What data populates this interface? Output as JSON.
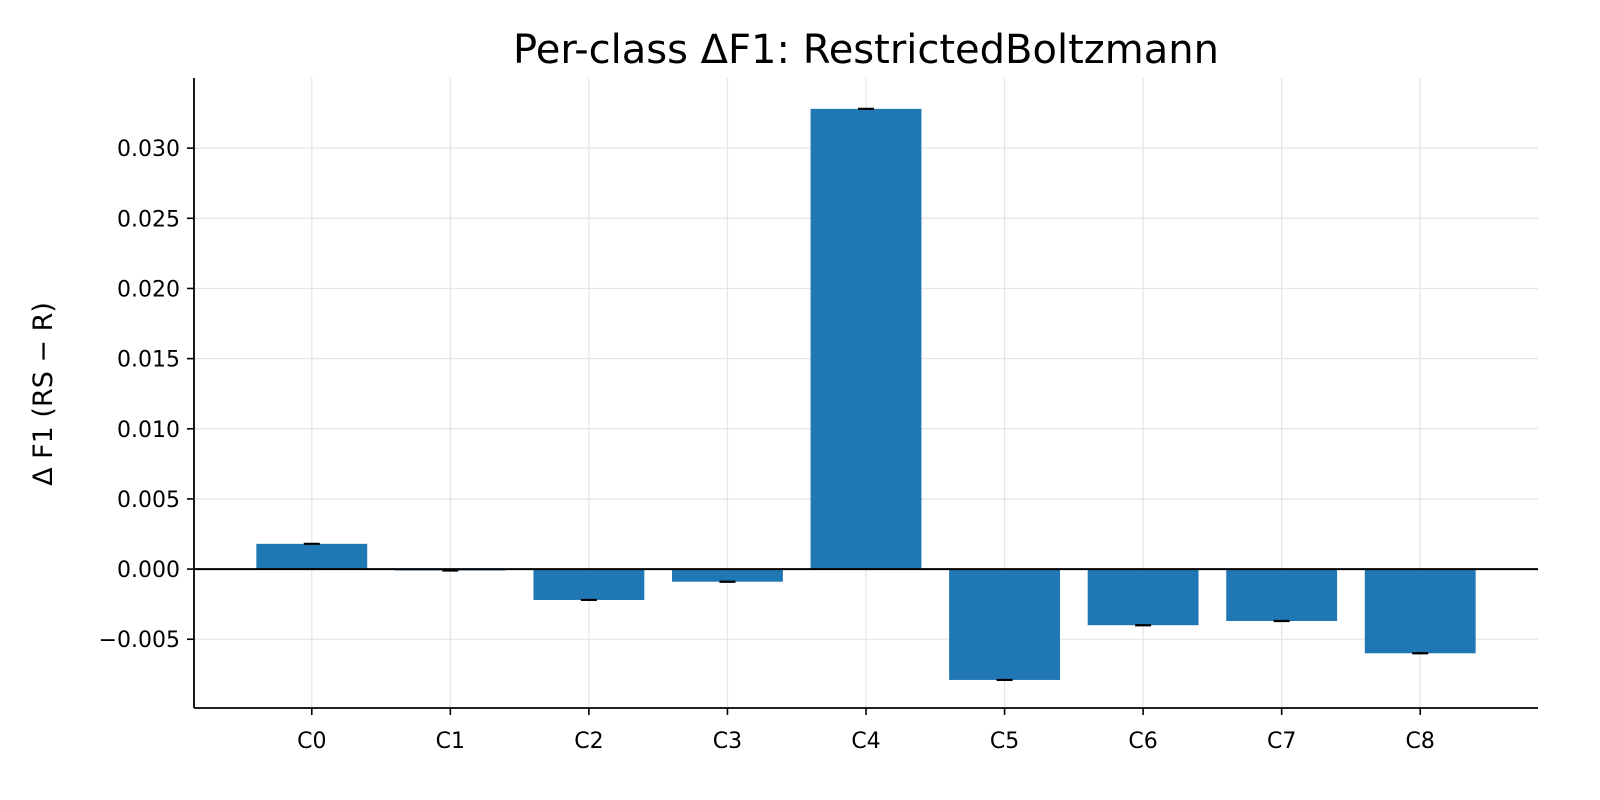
{
  "chart_data": {
    "type": "bar",
    "title": "Per-class ΔF1: RestrictedBoltzmann",
    "xlabel": "",
    "ylabel": "Δ F1 (RS − R)",
    "categories": [
      "C0",
      "C1",
      "C2",
      "C3",
      "C4",
      "C5",
      "C6",
      "C7",
      "C8"
    ],
    "values": [
      0.0018,
      -0.0001,
      -0.0022,
      -0.0009,
      0.0328,
      -0.0079,
      -0.004,
      -0.0037,
      -0.006
    ],
    "ylim": [
      -0.0099,
      0.035
    ],
    "yticks": [
      -0.005,
      0.0,
      0.005,
      0.01,
      0.015,
      0.02,
      0.025,
      0.03
    ],
    "ytick_labels": [
      "−0.005",
      "0.000",
      "0.005",
      "0.010",
      "0.015",
      "0.020",
      "0.025",
      "0.030"
    ],
    "grid": true,
    "zero_line": true,
    "error_caps": true,
    "bar_color": "#1f77b4"
  }
}
